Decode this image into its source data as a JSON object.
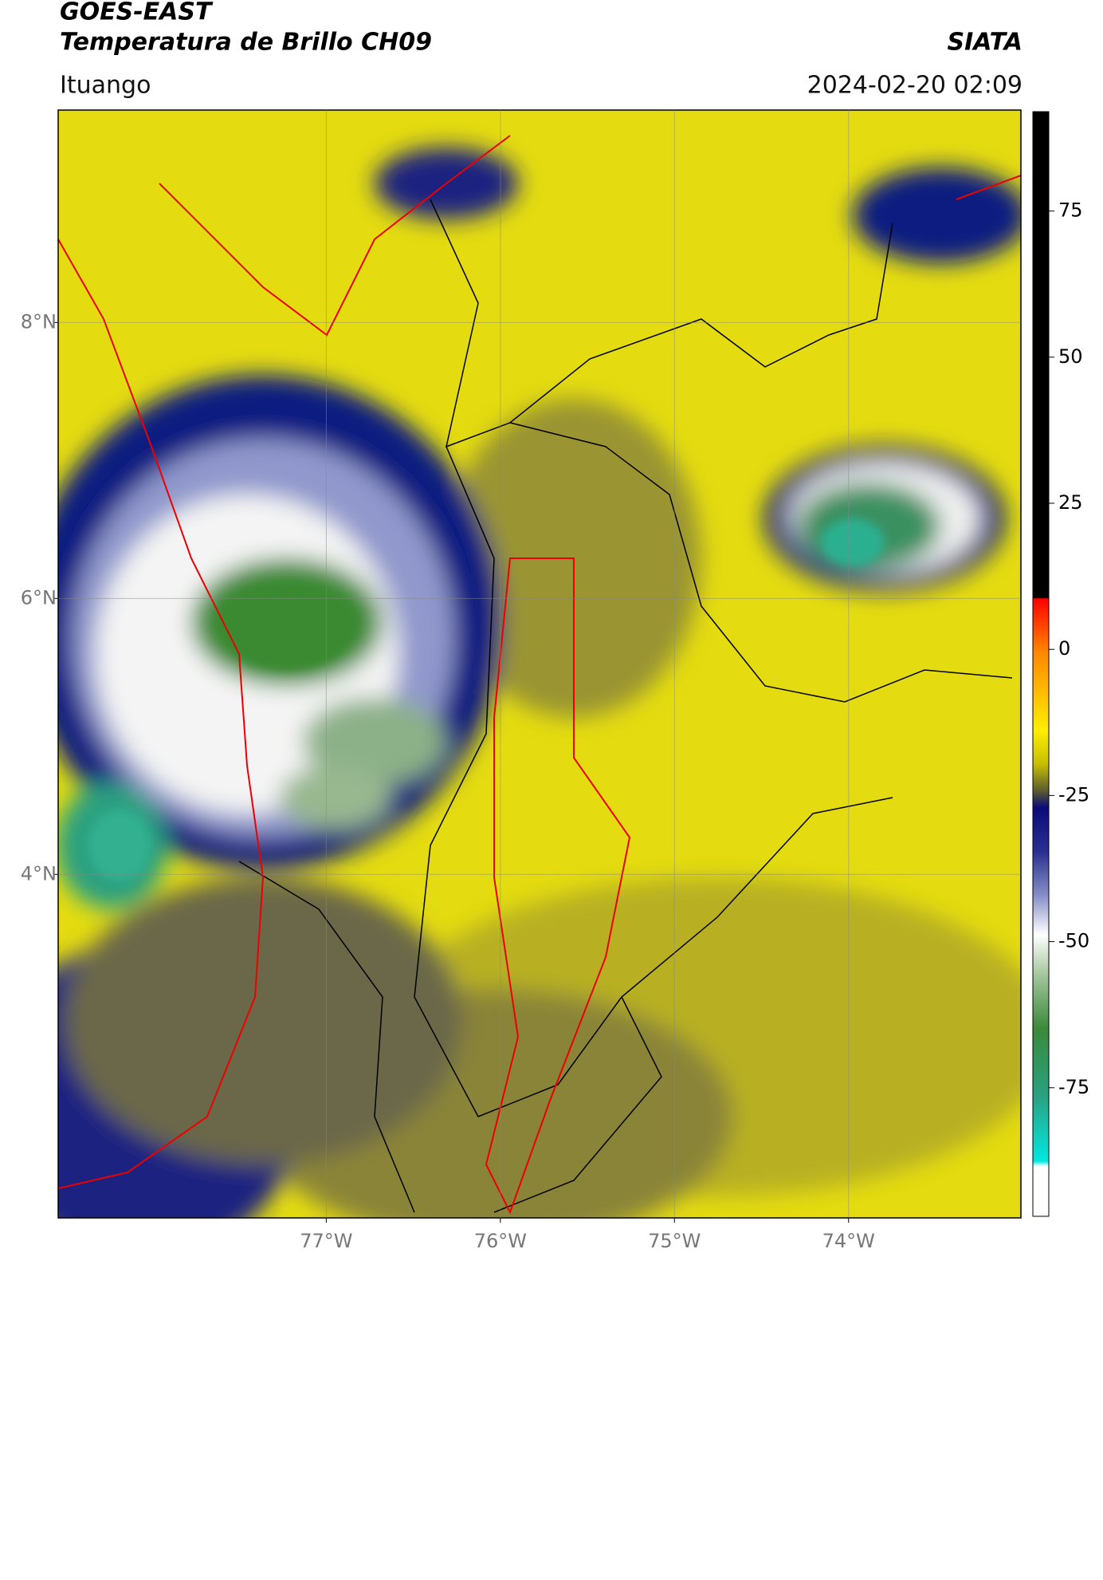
{
  "chart_data": {
    "type": "map",
    "title": "GOES-EAST",
    "subtitle": "Temperatura de Brillo CH09",
    "source": "SIATA",
    "location": "Ituango",
    "datetime": "2024-02-20 02:09",
    "xlim": [
      -78.54,
      -73.01
    ],
    "ylim": [
      1.51,
      9.54
    ],
    "xticks": [
      {
        "value": -77,
        "label": "77°W"
      },
      {
        "value": -76,
        "label": "76°W"
      },
      {
        "value": -75,
        "label": "75°W"
      },
      {
        "value": -74,
        "label": "74°W"
      }
    ],
    "yticks": [
      {
        "value": 8,
        "label": "8°N"
      },
      {
        "value": 6,
        "label": "6°N"
      },
      {
        "value": 4,
        "label": "4°N"
      }
    ],
    "grid": true,
    "colorbar_lim": [
      -97,
      92
    ],
    "colorbar_ticks": [
      75,
      50,
      25,
      0,
      -25,
      -50,
      -75
    ]
  }
}
